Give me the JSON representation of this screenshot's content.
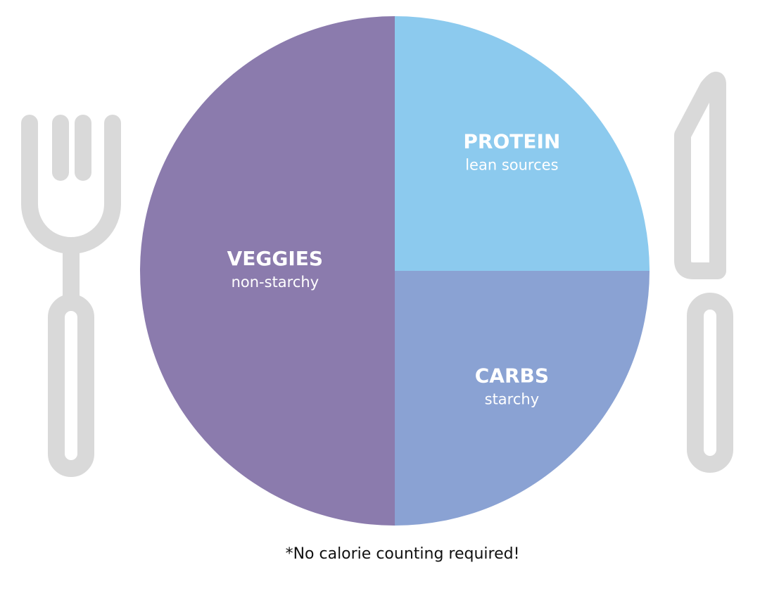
{
  "chart_data": {
    "type": "pie",
    "categories": [
      "PROTEIN",
      "CARBS",
      "VEGGIES"
    ],
    "sublabels": [
      "lean sources",
      "starchy",
      "non-starchy"
    ],
    "values": [
      25,
      25,
      50
    ],
    "colors": [
      "#8ccaee",
      "#8aa2d3",
      "#8b7bad"
    ],
    "note": "*No calorie counting required!"
  }
}
